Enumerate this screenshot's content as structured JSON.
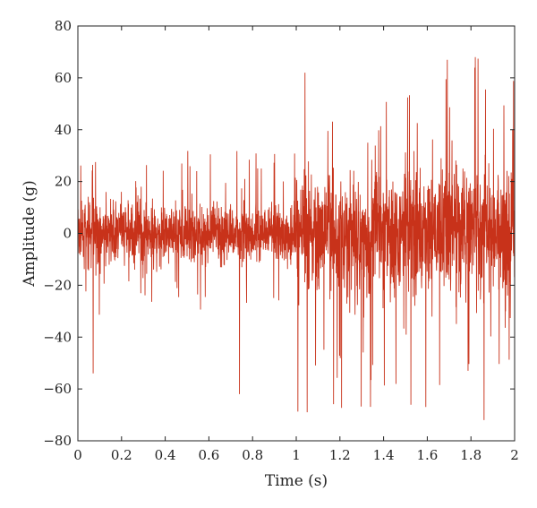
{
  "chart_data": {
    "type": "line",
    "title": "",
    "xlabel": "Time (s)",
    "ylabel": "Amplitude (g)",
    "xlim": [
      0,
      2
    ],
    "ylim": [
      -80,
      80
    ],
    "x_ticks": [
      0,
      0.2,
      0.4,
      0.6,
      0.8,
      1,
      1.2,
      1.4,
      1.6,
      1.8,
      2
    ],
    "x_tick_labels": [
      "0",
      "0.2",
      "0.4",
      "0.6",
      "0.8",
      "1",
      "1.2",
      "1.4",
      "1.6",
      "1.8",
      "2"
    ],
    "y_ticks": [
      -80,
      -60,
      -40,
      -20,
      0,
      20,
      40,
      60,
      80
    ],
    "y_tick_labels": [
      "−80",
      "−60",
      "−40",
      "−20",
      "0",
      "20",
      "40",
      "60",
      "80"
    ],
    "grid": false,
    "legend": "none",
    "line_color": "#c8321a",
    "series": [
      {
        "segments": [
          {
            "x_start": 0,
            "x_end": 1.0,
            "typical_amplitude": 10,
            "max_peak": 47,
            "min_peak": -62
          },
          {
            "x_start": 1.0,
            "x_end": 2.0,
            "typical_amplitude": 22,
            "max_peak": 68,
            "min_peak": -72
          }
        ],
        "notable_peaks": [
          {
            "x": 0.07,
            "y": -54
          },
          {
            "x": 0.74,
            "y": 47
          },
          {
            "x": 0.74,
            "y": -62
          },
          {
            "x": 1.04,
            "y": 62
          },
          {
            "x": 1.05,
            "y": -69
          },
          {
            "x": 1.82,
            "y": 68
          },
          {
            "x": 1.86,
            "y": -72
          }
        ]
      }
    ]
  }
}
